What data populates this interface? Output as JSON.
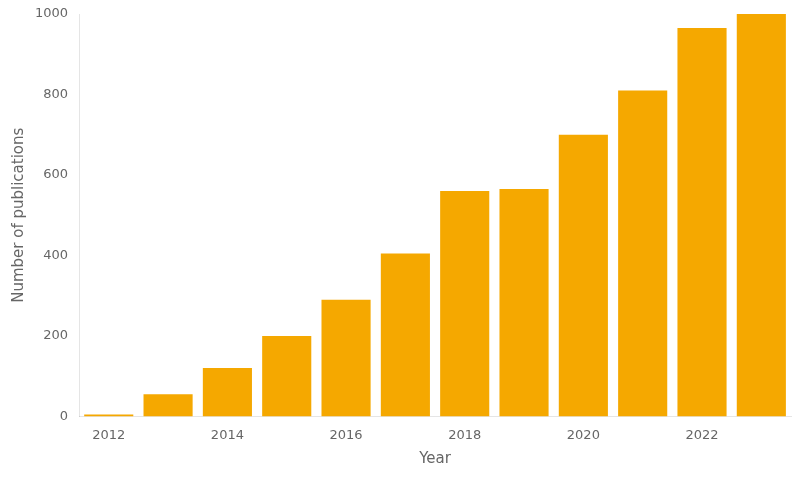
{
  "chart_data": {
    "type": "bar",
    "categories": [
      "2012",
      null,
      "2014",
      null,
      "2016",
      null,
      "2018",
      null,
      "2020",
      null,
      "2022",
      null
    ],
    "values": [
      5,
      55,
      120,
      200,
      290,
      405,
      560,
      565,
      700,
      810,
      965,
      1000
    ],
    "color": "#F5A800",
    "xlabel": "Year",
    "ylabel": "Number of publications",
    "ylim": [
      0,
      1000
    ],
    "yticks": [
      0,
      200,
      400,
      600,
      800,
      1000
    ],
    "grid": false
  }
}
